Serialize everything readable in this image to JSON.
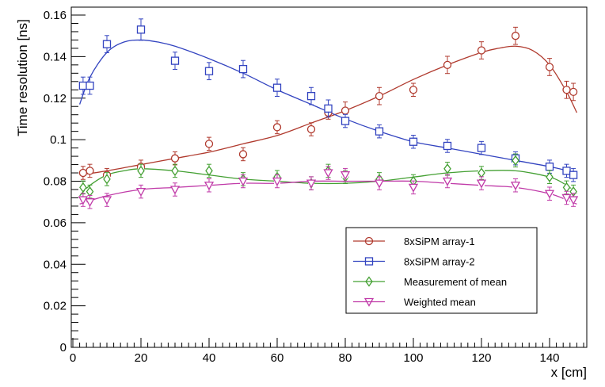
{
  "chart_data": {
    "type": "scatter",
    "xlabel": "x [cm]",
    "ylabel": "Time resolution [ns]",
    "xlim": [
      0,
      150
    ],
    "ylim": [
      0,
      0.165
    ],
    "x_ticks": [
      0,
      20,
      40,
      60,
      80,
      100,
      120,
      140
    ],
    "x_tick_labels": [
      "0",
      "20",
      "40",
      "60",
      "80",
      "100",
      "120",
      "140"
    ],
    "y_ticks": [
      0,
      0.02,
      0.04,
      0.06,
      0.08,
      0.1,
      0.12,
      0.14,
      0.16
    ],
    "y_tick_labels": [
      "0",
      "0.02",
      "0.04",
      "0.06",
      "0.08",
      "0.1",
      "0.12",
      "0.14",
      "0.16"
    ],
    "grid": false,
    "legend_position": "bottom-right",
    "series": [
      {
        "name": "8xSiPM array-1",
        "color": "#b03a2e",
        "marker": "circle",
        "x": [
          3,
          5,
          10,
          20,
          30,
          40,
          50,
          60,
          70,
          75,
          80,
          90,
          100,
          110,
          120,
          130,
          140,
          145,
          147
        ],
        "y": [
          0.084,
          0.085,
          0.083,
          0.087,
          0.091,
          0.098,
          0.093,
          0.106,
          0.105,
          0.113,
          0.114,
          0.121,
          0.124,
          0.136,
          0.143,
          0.15,
          0.135,
          0.124,
          0.123
        ],
        "err": [
          0.002,
          0.002,
          0.002,
          0.002,
          0.002,
          0.002,
          0.002,
          0.002,
          0.002,
          0.002,
          0.003,
          0.003,
          0.002,
          0.003,
          0.003,
          0.003,
          0.003,
          0.003,
          0.003
        ],
        "fit_x": [
          2,
          10,
          20,
          30,
          40,
          50,
          60,
          70,
          80,
          90,
          100,
          110,
          120,
          125,
          130,
          135,
          140,
          145,
          148
        ],
        "fit_y": [
          0.083,
          0.085,
          0.088,
          0.091,
          0.094,
          0.098,
          0.102,
          0.108,
          0.114,
          0.121,
          0.129,
          0.136,
          0.142,
          0.144,
          0.145,
          0.143,
          0.136,
          0.123,
          0.113
        ]
      },
      {
        "name": "8xSiPM array-2",
        "color": "#3344c0",
        "marker": "square",
        "x": [
          3,
          5,
          10,
          20,
          30,
          40,
          50,
          60,
          70,
          75,
          80,
          90,
          100,
          110,
          120,
          130,
          140,
          145,
          147
        ],
        "y": [
          0.126,
          0.126,
          0.146,
          0.153,
          0.138,
          0.133,
          0.134,
          0.125,
          0.121,
          0.115,
          0.109,
          0.104,
          0.099,
          0.097,
          0.096,
          0.091,
          0.087,
          0.085,
          0.083
        ],
        "err": [
          0.003,
          0.003,
          0.003,
          0.004,
          0.003,
          0.003,
          0.003,
          0.003,
          0.003,
          0.003,
          0.002,
          0.002,
          0.002,
          0.002,
          0.002,
          0.002,
          0.002,
          0.002,
          0.002
        ],
        "fit_x": [
          2,
          5,
          10,
          15,
          20,
          25,
          30,
          40,
          50,
          60,
          70,
          80,
          90,
          100,
          110,
          120,
          130,
          140,
          148
        ],
        "fit_y": [
          0.117,
          0.13,
          0.142,
          0.147,
          0.148,
          0.147,
          0.145,
          0.139,
          0.132,
          0.124,
          0.117,
          0.11,
          0.104,
          0.099,
          0.096,
          0.093,
          0.09,
          0.087,
          0.084
        ]
      },
      {
        "name": "Measurement of mean",
        "color": "#44a033",
        "marker": "diamond",
        "x": [
          3,
          5,
          10,
          20,
          30,
          40,
          50,
          60,
          70,
          75,
          80,
          90,
          100,
          110,
          120,
          130,
          140,
          145,
          147
        ],
        "y": [
          0.077,
          0.075,
          0.081,
          0.085,
          0.085,
          0.085,
          0.081,
          0.082,
          0.079,
          0.085,
          0.082,
          0.081,
          0.08,
          0.086,
          0.084,
          0.09,
          0.082,
          0.077,
          0.075
        ],
        "err": [
          0.002,
          0.002,
          0.002,
          0.002,
          0.002,
          0.002,
          0.002,
          0.002,
          0.002,
          0.002,
          0.002,
          0.002,
          0.002,
          0.002,
          0.002,
          0.002,
          0.002,
          0.002,
          0.002
        ],
        "fit_x": [
          2,
          5,
          10,
          15,
          20,
          30,
          40,
          50,
          60,
          70,
          80,
          90,
          100,
          110,
          120,
          130,
          140,
          145,
          148
        ],
        "fit_y": [
          0.073,
          0.078,
          0.083,
          0.085,
          0.086,
          0.085,
          0.083,
          0.081,
          0.08,
          0.079,
          0.079,
          0.08,
          0.082,
          0.084,
          0.085,
          0.085,
          0.082,
          0.078,
          0.074
        ]
      },
      {
        "name": "Weighted mean",
        "color": "#c03aa8",
        "marker": "triangle-down",
        "x": [
          3,
          5,
          10,
          20,
          30,
          40,
          50,
          60,
          70,
          75,
          80,
          90,
          100,
          110,
          120,
          130,
          140,
          145,
          147
        ],
        "y": [
          0.071,
          0.07,
          0.071,
          0.075,
          0.076,
          0.078,
          0.08,
          0.08,
          0.079,
          0.084,
          0.083,
          0.079,
          0.077,
          0.08,
          0.079,
          0.078,
          0.074,
          0.072,
          0.071
        ],
        "err": [
          0.002,
          0.002,
          0.002,
          0.002,
          0.002,
          0.002,
          0.002,
          0.002,
          0.002,
          0.002,
          0.002,
          0.002,
          0.002,
          0.002,
          0.002,
          0.002,
          0.002,
          0.002,
          0.002
        ],
        "fit_x": [
          2,
          10,
          20,
          30,
          40,
          50,
          60,
          70,
          80,
          90,
          100,
          110,
          120,
          130,
          140,
          145,
          148
        ],
        "fit_y": [
          0.069,
          0.073,
          0.076,
          0.077,
          0.078,
          0.079,
          0.079,
          0.08,
          0.08,
          0.08,
          0.08,
          0.079,
          0.078,
          0.077,
          0.074,
          0.071,
          0.069
        ]
      }
    ]
  }
}
